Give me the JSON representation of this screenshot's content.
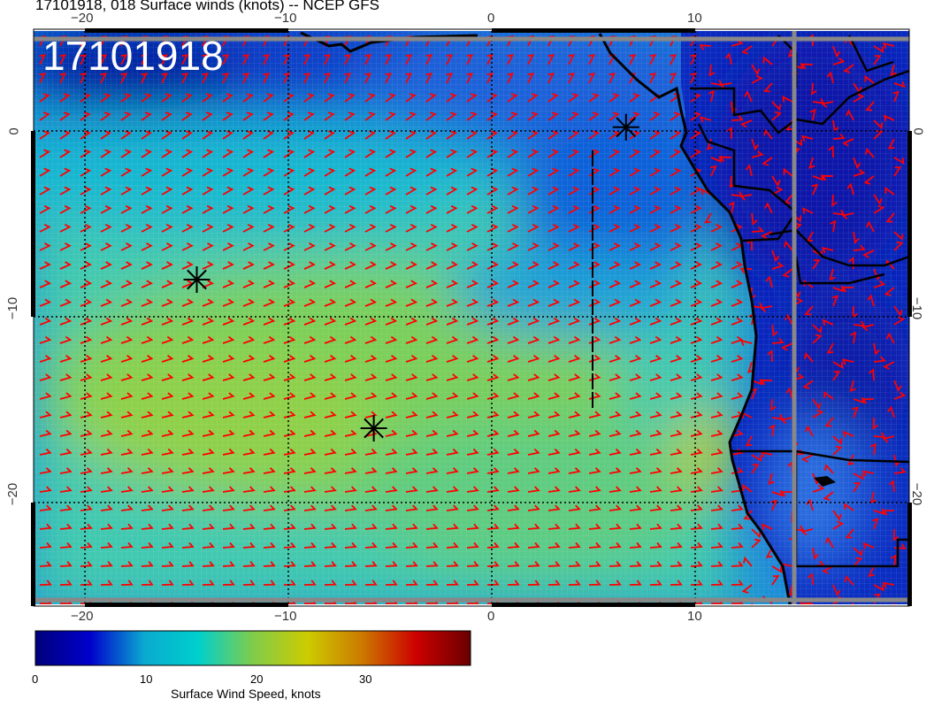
{
  "title": "17101918, 018 Surface winds (knots) -- NCEP GFS",
  "stamp": "17101918",
  "map": {
    "lon_range": [
      -22.5,
      20.5
    ],
    "lat_range": [
      -25.5,
      5.4
    ],
    "lon_ticks": [
      "−20",
      "−10",
      "0",
      "10"
    ],
    "lat_ticks": [
      "0",
      "−10",
      "−20"
    ],
    "barb_color": "#ff0000",
    "markers": [
      {
        "symbol": "asterisk",
        "lon": -14.5,
        "lat": -8.0
      },
      {
        "symbol": "asterisk",
        "lon": -5.8,
        "lat": -16.0
      },
      {
        "symbol": "asterisk",
        "lon": 6.6,
        "lat": 0.2
      }
    ]
  },
  "colorbar": {
    "title": "Surface Wind Speed, knots",
    "ticks": [
      "0",
      "10",
      "20",
      "30"
    ],
    "range": [
      0,
      39.5
    ],
    "colors": [
      "#00007a",
      "#0000cc",
      "#0aa9d0",
      "#00d0cc",
      "#80cc4a",
      "#cccc00",
      "#cc7a00",
      "#cc0000",
      "#6a0000"
    ]
  }
}
